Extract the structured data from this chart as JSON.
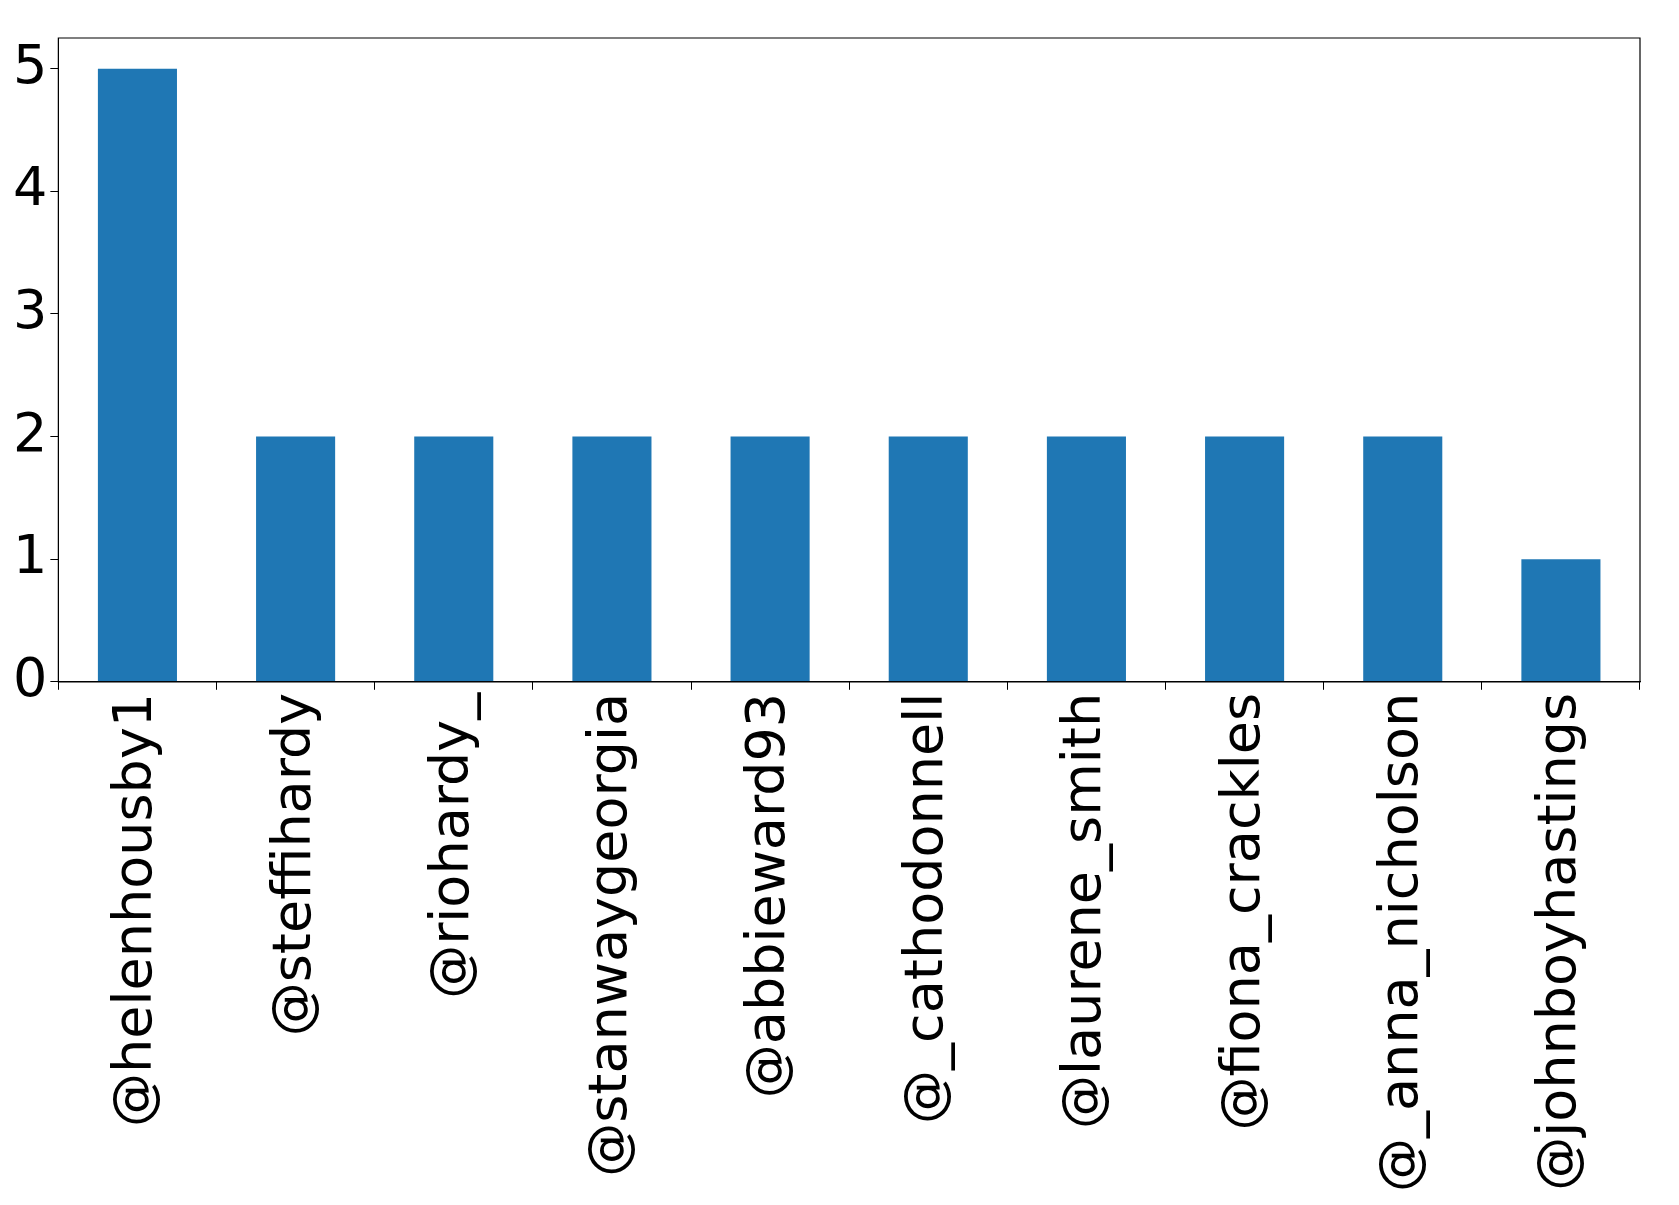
{
  "chart_data": {
    "type": "bar",
    "categories": [
      "@helenhousby1",
      "@steffihardy",
      "@riohardy_",
      "@stanwaygeorgia",
      "@abbieward93",
      "@_cathodonnell",
      "@laurene_smith",
      "@fiona_crackles",
      "@_anna_nicholson",
      "@johnboyhastings"
    ],
    "values": [
      5,
      2,
      2,
      2,
      2,
      2,
      2,
      2,
      2,
      1
    ],
    "color": "#1f77b4",
    "ylim": [
      0,
      5.25
    ],
    "yticks": [
      0,
      1,
      2,
      3,
      4,
      5
    ],
    "grid": false
  }
}
